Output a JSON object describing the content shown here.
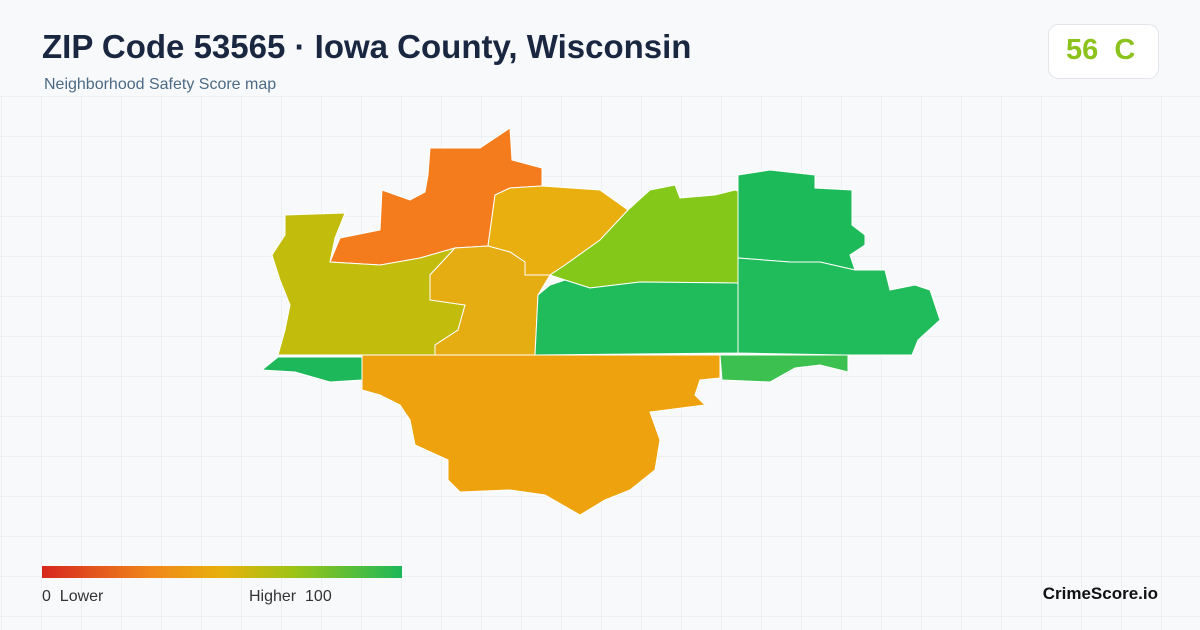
{
  "header": {
    "title": "ZIP Code 53565 · Iowa County, Wisconsin",
    "subtitle": "Neighborhood Safety Score map"
  },
  "score": {
    "value": 56,
    "grade": "C"
  },
  "legend": {
    "min": 0,
    "min_label": "Lower",
    "max_label": "Higher",
    "max": 100
  },
  "brand": "CrimeScore.io"
}
